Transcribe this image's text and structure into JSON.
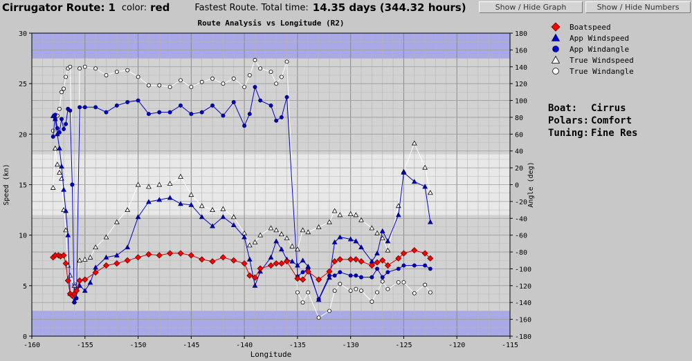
{
  "header": {
    "route_label": "Cirrugator Route:",
    "route_number": "1",
    "color_label": "color:",
    "color_value": "red",
    "fastest_label": "Fastest Route. Total time:",
    "fastest_value": "14.35 days (344.32 hours)"
  },
  "buttons": {
    "show_hide_graph": "Show / Hide Graph",
    "show_hide_numbers": "Show / Hide Numbers"
  },
  "info": {
    "boat_label": "Boat:",
    "boat_value": "Cirrus",
    "polars_label": "Polars:",
    "polars_value": "Comfort",
    "tuning_label": "Tuning:",
    "tuning_value": "Fine Res"
  },
  "chart_data": {
    "type": "line",
    "title": "Route Analysis vs Longitude (R2)",
    "xlabel": "Longitude",
    "ylabel": "Speed (kn)",
    "y2label": "Angle (deg)",
    "xlim": [
      -160,
      -115
    ],
    "ylim": [
      0,
      30
    ],
    "y2lim": [
      -180,
      180
    ],
    "grid": true,
    "legend_position": "right",
    "x_ticks": [
      -160,
      -155,
      -150,
      -145,
      -140,
      -135,
      -130,
      -125,
      -120,
      -115
    ],
    "y_ticks": [
      0,
      5,
      10,
      15,
      20,
      25,
      30
    ],
    "y2_ticks": [
      -180,
      -160,
      -140,
      -120,
      -100,
      -80,
      -60,
      -40,
      -20,
      0,
      20,
      40,
      60,
      80,
      100,
      120,
      140,
      160,
      180
    ],
    "colors": {
      "boatspeed": "#ff0000",
      "app_wind": "#0000cc",
      "true_wind": "#ffffff",
      "band_outer": "#a9a9e8",
      "band_mid": "#d2d2d2",
      "band_inner": "#e8e8e8"
    },
    "series": [
      {
        "name": "Boatspeed",
        "axis": "left",
        "marker": "diamond",
        "points": [
          [
            -158,
            7.8
          ],
          [
            -157.8,
            8.0
          ],
          [
            -157.5,
            8.0
          ],
          [
            -157.3,
            7.9
          ],
          [
            -157,
            8.0
          ],
          [
            -156.8,
            7.2
          ],
          [
            -156.6,
            5.5
          ],
          [
            -156.4,
            4.2
          ],
          [
            -156.2,
            4.0
          ],
          [
            -156,
            4.2
          ],
          [
            -155.8,
            4.5
          ],
          [
            -155.5,
            5.5
          ],
          [
            -155,
            5.6
          ],
          [
            -154,
            6.3
          ],
          [
            -153,
            7.0
          ],
          [
            -152,
            7.2
          ],
          [
            -151,
            7.5
          ],
          [
            -150,
            7.8
          ],
          [
            -149,
            8.1
          ],
          [
            -148,
            8.0
          ],
          [
            -147,
            8.2
          ],
          [
            -146,
            8.2
          ],
          [
            -145,
            8.0
          ],
          [
            -144,
            7.6
          ],
          [
            -143,
            7.4
          ],
          [
            -142,
            7.8
          ],
          [
            -141,
            7.5
          ],
          [
            -140,
            7.2
          ],
          [
            -139.5,
            6.0
          ],
          [
            -139,
            5.8
          ],
          [
            -138.5,
            6.7
          ],
          [
            -137.5,
            7.0
          ],
          [
            -137,
            7.2
          ],
          [
            -136.5,
            7.2
          ],
          [
            -136,
            7.4
          ],
          [
            -135,
            5.7
          ],
          [
            -134.5,
            5.6
          ],
          [
            -134,
            6.4
          ],
          [
            -133,
            5.6
          ],
          [
            -132,
            6.4
          ],
          [
            -131.5,
            7.4
          ],
          [
            -131,
            7.6
          ],
          [
            -130,
            7.6
          ],
          [
            -129.5,
            7.6
          ],
          [
            -129,
            7.4
          ],
          [
            -128,
            7.0
          ],
          [
            -127.5,
            7.3
          ],
          [
            -127,
            7.5
          ],
          [
            -126.5,
            7.0
          ],
          [
            -125.5,
            7.7
          ],
          [
            -125,
            8.2
          ],
          [
            -124,
            8.5
          ],
          [
            -123,
            8.2
          ],
          [
            -122.5,
            7.7
          ]
        ]
      },
      {
        "name": "App Windspeed",
        "axis": "left",
        "marker": "triangle",
        "points": [
          [
            -158,
            21.8
          ],
          [
            -157.8,
            21.5
          ],
          [
            -157.6,
            20.0
          ],
          [
            -157.4,
            18.6
          ],
          [
            -157.2,
            16.8
          ],
          [
            -157,
            14.5
          ],
          [
            -156.8,
            12.4
          ],
          [
            -156.6,
            10.0
          ],
          [
            -156.4,
            4.2
          ],
          [
            -156,
            3.5
          ],
          [
            -155.5,
            5.0
          ],
          [
            -155,
            4.5
          ],
          [
            -154.5,
            5.3
          ],
          [
            -154,
            6.8
          ],
          [
            -153,
            7.8
          ],
          [
            -152,
            8.0
          ],
          [
            -151,
            8.8
          ],
          [
            -150,
            11.8
          ],
          [
            -149,
            13.3
          ],
          [
            -148,
            13.5
          ],
          [
            -147,
            13.7
          ],
          [
            -146,
            13.1
          ],
          [
            -145,
            13.0
          ],
          [
            -144,
            11.8
          ],
          [
            -143,
            10.9
          ],
          [
            -142,
            11.8
          ],
          [
            -141,
            11.0
          ],
          [
            -140,
            9.8
          ],
          [
            -139.5,
            7.6
          ],
          [
            -139,
            5.0
          ],
          [
            -138.5,
            6.4
          ],
          [
            -137.5,
            7.8
          ],
          [
            -137,
            9.4
          ],
          [
            -136.5,
            8.6
          ],
          [
            -136,
            7.6
          ],
          [
            -135.5,
            7.4
          ],
          [
            -135,
            7.0
          ],
          [
            -134.5,
            7.5
          ],
          [
            -134,
            6.9
          ],
          [
            -133,
            3.6
          ],
          [
            -132,
            5.8
          ],
          [
            -131.5,
            9.3
          ],
          [
            -131,
            9.8
          ],
          [
            -130,
            9.6
          ],
          [
            -129.5,
            9.4
          ],
          [
            -129,
            8.8
          ],
          [
            -128,
            7.4
          ],
          [
            -127.5,
            8.2
          ],
          [
            -127,
            10.4
          ],
          [
            -126.5,
            9.4
          ],
          [
            -125.5,
            12.0
          ],
          [
            -125,
            16.2
          ],
          [
            -124,
            15.3
          ],
          [
            -123,
            14.8
          ],
          [
            -122.5,
            11.3
          ]
        ]
      },
      {
        "name": "App Windangle",
        "axis": "right",
        "marker": "circle",
        "points": [
          [
            -158,
            57
          ],
          [
            -157.8,
            83
          ],
          [
            -157.6,
            67
          ],
          [
            -157.4,
            62
          ],
          [
            -157.2,
            78
          ],
          [
            -157,
            66
          ],
          [
            -156.8,
            72
          ],
          [
            -156.6,
            90
          ],
          [
            -156.4,
            88
          ],
          [
            -156.2,
            0
          ],
          [
            -156,
            -140
          ],
          [
            -155.8,
            -135
          ],
          [
            -155.5,
            92
          ],
          [
            -155,
            92
          ],
          [
            -154,
            92
          ],
          [
            -153,
            86
          ],
          [
            -152,
            94
          ],
          [
            -151,
            98
          ],
          [
            -150,
            100
          ],
          [
            -149,
            84
          ],
          [
            -148,
            86
          ],
          [
            -147,
            86
          ],
          [
            -146,
            94
          ],
          [
            -145,
            84
          ],
          [
            -144,
            86
          ],
          [
            -143,
            94
          ],
          [
            -142,
            82
          ],
          [
            -141,
            98
          ],
          [
            -140,
            70
          ],
          [
            -139.5,
            84
          ],
          [
            -139,
            116
          ],
          [
            -138.5,
            100
          ],
          [
            -137.5,
            94
          ],
          [
            -137,
            76
          ],
          [
            -136.5,
            80
          ],
          [
            -136,
            104
          ],
          [
            -135,
            -109
          ],
          [
            -134.5,
            -104
          ],
          [
            -134,
            -100
          ],
          [
            -133,
            -136
          ],
          [
            -132,
            -108
          ],
          [
            -131.5,
            -108
          ],
          [
            -131,
            -104
          ],
          [
            -130,
            -108
          ],
          [
            -129.5,
            -108
          ],
          [
            -129,
            -110
          ],
          [
            -128,
            -110
          ],
          [
            -127.5,
            -100
          ],
          [
            -127,
            -110
          ],
          [
            -126.5,
            -104
          ],
          [
            -125.5,
            -100
          ],
          [
            -125,
            -96
          ],
          [
            -124,
            -96
          ],
          [
            -123,
            -96
          ],
          [
            -122.5,
            -100
          ]
        ]
      },
      {
        "name": "True Windspeed",
        "axis": "left",
        "marker": "triangle",
        "points": [
          [
            -158,
            14.7
          ],
          [
            -157.8,
            18.6
          ],
          [
            -157.6,
            17.0
          ],
          [
            -157.4,
            16.2
          ],
          [
            -157.2,
            15.6
          ],
          [
            -157,
            12.5
          ],
          [
            -156.8,
            10.5
          ],
          [
            -156.6,
            7.0
          ],
          [
            -156.4,
            6.0
          ],
          [
            -156,
            5.0
          ],
          [
            -155.5,
            7.5
          ],
          [
            -155,
            7.6
          ],
          [
            -154.5,
            7.8
          ],
          [
            -154,
            8.8
          ],
          [
            -153,
            9.8
          ],
          [
            -152,
            11.3
          ],
          [
            -151,
            12.5
          ],
          [
            -150,
            15.0
          ],
          [
            -149,
            14.8
          ],
          [
            -148,
            15.0
          ],
          [
            -147,
            15.1
          ],
          [
            -146,
            15.8
          ],
          [
            -145,
            14.0
          ],
          [
            -144,
            12.9
          ],
          [
            -143,
            12.5
          ],
          [
            -142,
            12.6
          ],
          [
            -141,
            11.8
          ],
          [
            -140,
            10.2
          ],
          [
            -139.5,
            9.0
          ],
          [
            -139,
            9.3
          ],
          [
            -138.5,
            10.0
          ],
          [
            -137.5,
            10.7
          ],
          [
            -137,
            10.5
          ],
          [
            -136.5,
            10.1
          ],
          [
            -136,
            9.7
          ],
          [
            -135.5,
            8.9
          ],
          [
            -135,
            8.6
          ],
          [
            -134.5,
            10.5
          ],
          [
            -134,
            10.3
          ],
          [
            -133,
            10.8
          ],
          [
            -132,
            11.3
          ],
          [
            -131.5,
            12.4
          ],
          [
            -131,
            12.0
          ],
          [
            -130,
            12.1
          ],
          [
            -129.5,
            12.0
          ],
          [
            -129,
            11.5
          ],
          [
            -128,
            10.7
          ],
          [
            -127.5,
            10.2
          ],
          [
            -127,
            9.7
          ],
          [
            -126.5,
            8.5
          ],
          [
            -125.5,
            12.9
          ],
          [
            -125,
            16.3
          ],
          [
            -124,
            19.1
          ],
          [
            -123,
            16.7
          ],
          [
            -122.5,
            14.2
          ]
        ]
      },
      {
        "name": "True Windangle",
        "axis": "right",
        "marker": "circle",
        "points": [
          [
            -158,
            64
          ],
          [
            -157.8,
            78
          ],
          [
            -157.6,
            82
          ],
          [
            -157.4,
            90
          ],
          [
            -157.2,
            110
          ],
          [
            -157,
            114
          ],
          [
            -156.8,
            128
          ],
          [
            -156.6,
            138
          ],
          [
            -156.4,
            140
          ],
          [
            -156.2,
            0
          ],
          [
            -156,
            -118
          ],
          [
            -155.8,
            -124
          ],
          [
            -155.5,
            138
          ],
          [
            -155,
            140
          ],
          [
            -154,
            138
          ],
          [
            -153,
            130
          ],
          [
            -152,
            134
          ],
          [
            -151,
            136
          ],
          [
            -150,
            128
          ],
          [
            -149,
            118
          ],
          [
            -148,
            118
          ],
          [
            -147,
            116
          ],
          [
            -146,
            124
          ],
          [
            -145,
            116
          ],
          [
            -144,
            122
          ],
          [
            -143,
            126
          ],
          [
            -142,
            120
          ],
          [
            -141,
            126
          ],
          [
            -140,
            116
          ],
          [
            -139.5,
            130
          ],
          [
            -139,
            148
          ],
          [
            -138.5,
            138
          ],
          [
            -137.5,
            134
          ],
          [
            -137,
            120
          ],
          [
            -136.5,
            128
          ],
          [
            -136,
            146
          ],
          [
            -135,
            -128
          ],
          [
            -134.5,
            -140
          ],
          [
            -134,
            -128
          ],
          [
            -133,
            -158
          ],
          [
            -132,
            -150
          ],
          [
            -131.5,
            -126
          ],
          [
            -131,
            -118
          ],
          [
            -130,
            -126
          ],
          [
            -129.5,
            -124
          ],
          [
            -129,
            -126
          ],
          [
            -128,
            -139
          ],
          [
            -127.5,
            -128
          ],
          [
            -127,
            -115
          ],
          [
            -126.5,
            -124
          ],
          [
            -125.5,
            -116
          ],
          [
            -125,
            -116
          ],
          [
            -124,
            -129
          ],
          [
            -123,
            -119
          ],
          [
            -122.5,
            -128
          ]
        ]
      }
    ]
  }
}
